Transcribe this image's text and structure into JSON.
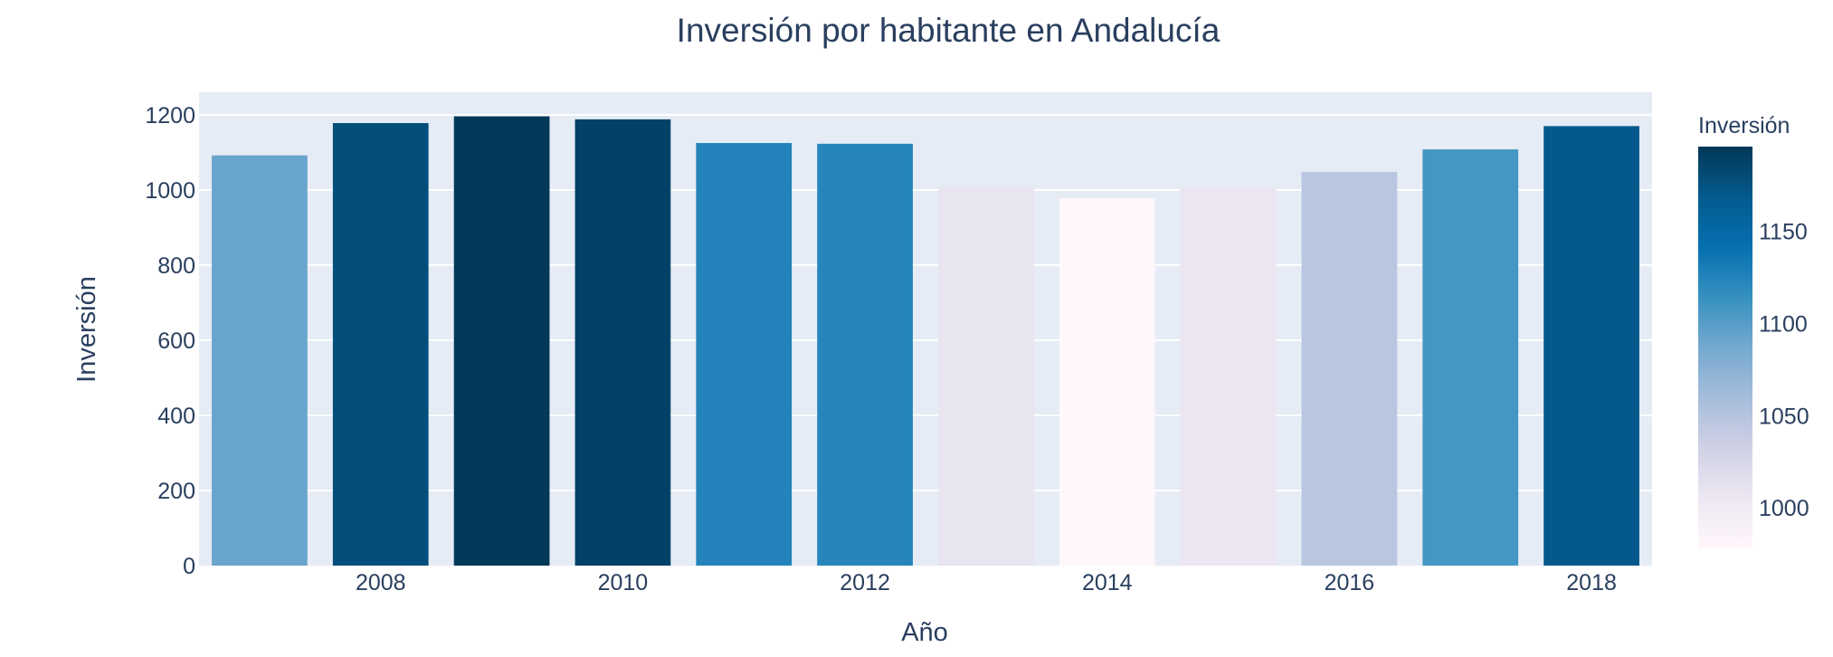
{
  "chart_data": {
    "type": "bar",
    "title": "Inversión por habitante en Andalucía",
    "xlabel": "Año",
    "ylabel": "Inversión",
    "x": [
      2007,
      2008,
      2009,
      2010,
      2011,
      2012,
      2013,
      2014,
      2015,
      2016,
      2017,
      2018
    ],
    "values": [
      1092,
      1178,
      1196,
      1188,
      1125,
      1123,
      1009,
      978,
      1006,
      1048,
      1108,
      1170
    ],
    "ylim": [
      0,
      1260
    ],
    "y_ticks": [
      0,
      200,
      400,
      600,
      800,
      1000,
      1200
    ],
    "x_ticks": [
      2008,
      2010,
      2012,
      2014,
      2016,
      2018
    ],
    "grid": true,
    "colorbar": {
      "title": "Inversión",
      "range": [
        978,
        1196
      ],
      "ticks": [
        1000,
        1050,
        1100,
        1150
      ],
      "colorscale": [
        "#fff7fb",
        "#ece7f2",
        "#d0d1e6",
        "#a6bddb",
        "#74a9cf",
        "#3690c0",
        "#0570b0",
        "#045a8d",
        "#023858"
      ]
    },
    "colors": {
      "plot_bg": "#e5ecf6",
      "grid": "#ffffff",
      "text": "#2a3f5f"
    }
  }
}
